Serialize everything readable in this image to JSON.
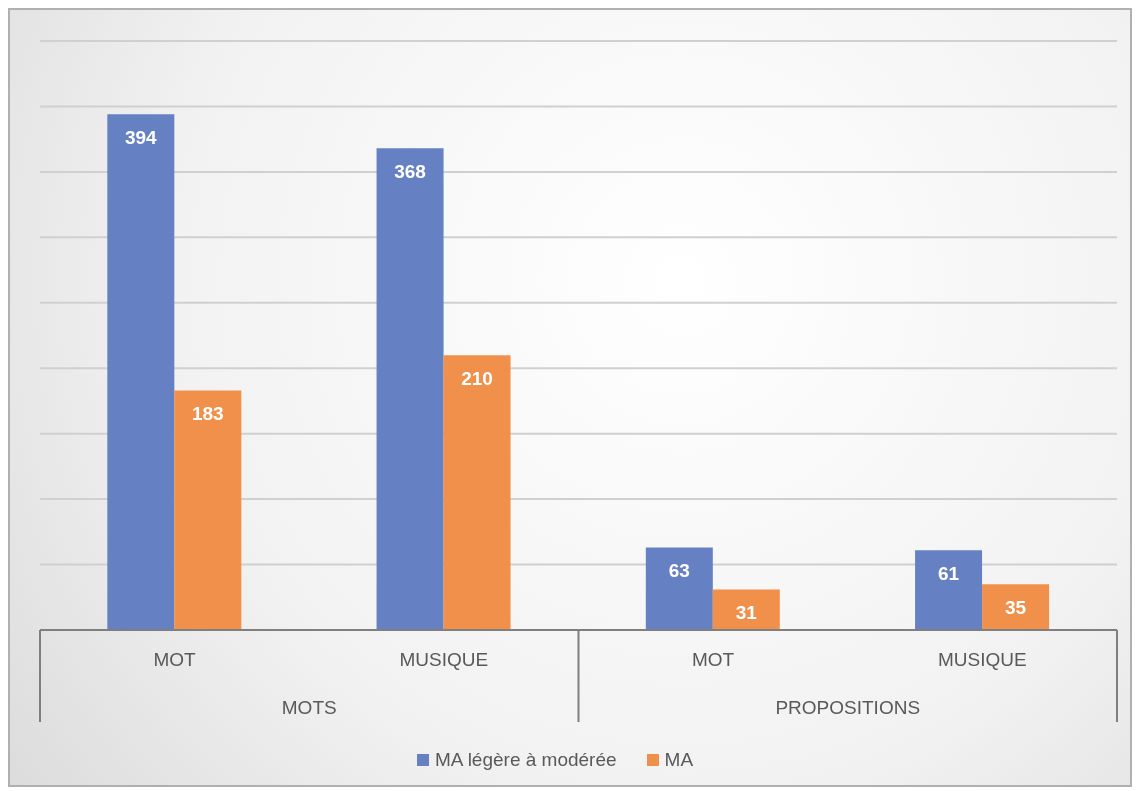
{
  "chart_data": {
    "type": "bar",
    "categories": [
      "MOT",
      "MUSIQUE",
      "MOT",
      "MUSIQUE"
    ],
    "series": [
      {
        "name": "MA légère à modérée",
        "color": "#6680c4",
        "values": [
          394,
          368,
          63,
          61
        ]
      },
      {
        "name": "MA",
        "color": "#f0904a",
        "values": [
          183,
          210,
          31,
          35
        ]
      }
    ],
    "ylim": [
      0,
      450
    ],
    "yticks": [
      {
        "value": 0,
        "label": null
      },
      {
        "value": 50,
        "label": null
      },
      {
        "value": 100,
        "label": null
      },
      {
        "value": 150,
        "label": null
      },
      {
        "value": 200,
        "label": null
      },
      {
        "value": 250,
        "label": null
      },
      {
        "value": 300,
        "label": null
      },
      {
        "value": 350,
        "label": null
      },
      {
        "value": 400,
        "label": null
      },
      {
        "value": 450,
        "label": null
      }
    ],
    "grid": "y",
    "legend": "bottom",
    "data_labels": true,
    "annotations": [
      "MOTS",
      "PROPOSITIONS"
    ]
  }
}
